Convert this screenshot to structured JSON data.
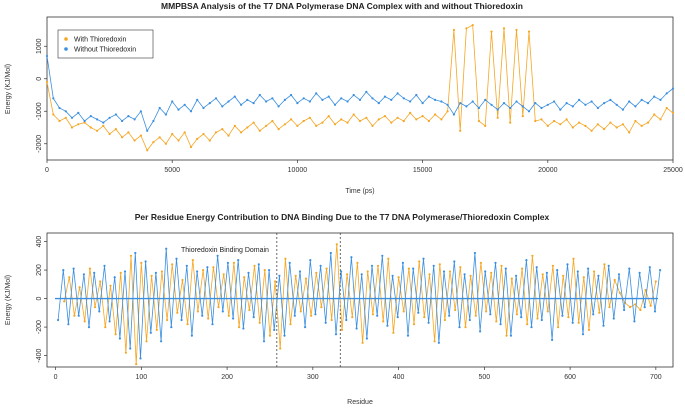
{
  "colors": {
    "with": "#F5A623",
    "without": "#3A8FE0",
    "axis": "#333333",
    "vline": "#444444"
  },
  "chart_data": [
    {
      "type": "line",
      "title": "MMPBSA Analysis of the T7 DNA Polymerase DNA Complex with and without Thioredoxin",
      "xlabel": "Time (ps)",
      "ylabel": "Energy (KJ/Mol)",
      "xlim": [
        0,
        25000
      ],
      "ylim": [
        -2500,
        1900
      ],
      "xticks": [
        0,
        5000,
        10000,
        15000,
        20000,
        25000
      ],
      "yticks": [
        -2000,
        -1000,
        0,
        1000
      ],
      "legend": {
        "position": "top-left",
        "entries": [
          "With Thioredoxin",
          "Without Thioredoxin"
        ]
      },
      "series": [
        {
          "name": "With Thioredoxin",
          "color_key": "with",
          "x": [
            0,
            250,
            500,
            750,
            1000,
            1250,
            1500,
            1750,
            2000,
            2250,
            2500,
            2750,
            3000,
            3250,
            3500,
            3750,
            4000,
            4250,
            4500,
            4750,
            5000,
            5250,
            5500,
            5750,
            6000,
            6250,
            6500,
            6750,
            7000,
            7250,
            7500,
            7750,
            8000,
            8250,
            8500,
            8750,
            9000,
            9250,
            9500,
            9750,
            10000,
            10250,
            10500,
            10750,
            11000,
            11250,
            11500,
            11750,
            12000,
            12250,
            12500,
            12750,
            13000,
            13250,
            13500,
            13750,
            14000,
            14250,
            14500,
            14750,
            15000,
            15250,
            15500,
            15750,
            16000,
            16250,
            16500,
            16750,
            17000,
            17250,
            17500,
            17750,
            18000,
            18250,
            18500,
            18750,
            19000,
            19250,
            19500,
            19750,
            20000,
            20250,
            20500,
            20750,
            21000,
            21250,
            21500,
            21750,
            22000,
            22250,
            22500,
            22750,
            23000,
            23250,
            23500,
            23750,
            24000,
            24250,
            24500,
            24750,
            25000
          ],
          "y": [
            -100,
            -1100,
            -1300,
            -1200,
            -1500,
            -1400,
            -1350,
            -1500,
            -1600,
            -1450,
            -1700,
            -1550,
            -1800,
            -1650,
            -1900,
            -1750,
            -2200,
            -1950,
            -1800,
            -2000,
            -1700,
            -1900,
            -1650,
            -2100,
            -1850,
            -1700,
            -1900,
            -1650,
            -1550,
            -1750,
            -1450,
            -1650,
            -1500,
            -1350,
            -1600,
            -1450,
            -1300,
            -1550,
            -1400,
            -1250,
            -1450,
            -1300,
            -1200,
            -1450,
            -1350,
            -1150,
            -1400,
            -1250,
            -1350,
            -1100,
            -1300,
            -1200,
            -1450,
            -1250,
            -1150,
            -1350,
            -1200,
            -1300,
            -1050,
            -1250,
            -1150,
            -1300,
            -1100,
            -1250,
            -1000,
            1500,
            -1600,
            1550,
            1650,
            -1300,
            -1450,
            1450,
            -1200,
            1550,
            -1350,
            1500,
            -1150,
            1450,
            -1300,
            -1250,
            -1450,
            -1300,
            -1400,
            -1250,
            -1500,
            -1350,
            -1450,
            -1600,
            -1400,
            -1550,
            -1350,
            -1500,
            -1400,
            -1650,
            -1300,
            -1450,
            -1350,
            -1100,
            -1250,
            -900,
            -1050
          ]
        },
        {
          "name": "Without Thioredoxin",
          "color_key": "without",
          "x": [
            0,
            250,
            500,
            750,
            1000,
            1250,
            1500,
            1750,
            2000,
            2250,
            2500,
            2750,
            3000,
            3250,
            3500,
            3750,
            4000,
            4250,
            4500,
            4750,
            5000,
            5250,
            5500,
            5750,
            6000,
            6250,
            6500,
            6750,
            7000,
            7250,
            7500,
            7750,
            8000,
            8250,
            8500,
            8750,
            9000,
            9250,
            9500,
            9750,
            10000,
            10250,
            10500,
            10750,
            11000,
            11250,
            11500,
            11750,
            12000,
            12250,
            12500,
            12750,
            13000,
            13250,
            13500,
            13750,
            14000,
            14250,
            14500,
            14750,
            15000,
            15250,
            15500,
            15750,
            16000,
            16250,
            16500,
            16750,
            17000,
            17250,
            17500,
            17750,
            18000,
            18250,
            18500,
            18750,
            19000,
            19250,
            19500,
            19750,
            20000,
            20250,
            20500,
            20750,
            21000,
            21250,
            21500,
            21750,
            22000,
            22250,
            22500,
            22750,
            23000,
            23250,
            23500,
            23750,
            24000,
            24250,
            24500,
            24750,
            25000
          ],
          "y": [
            700,
            -600,
            -900,
            -1000,
            -1200,
            -1050,
            -1300,
            -1150,
            -1250,
            -1350,
            -1200,
            -1100,
            -1300,
            -1150,
            -1250,
            -1000,
            -1600,
            -1300,
            -900,
            -1100,
            -700,
            -950,
            -800,
            -1000,
            -650,
            -900,
            -750,
            -600,
            -850,
            -700,
            -550,
            -800,
            -650,
            -750,
            -500,
            -700,
            -600,
            -850,
            -650,
            -500,
            -750,
            -600,
            -700,
            -450,
            -650,
            -550,
            -800,
            -600,
            -700,
            -500,
            -650,
            -400,
            -600,
            -750,
            -550,
            -650,
            -450,
            -600,
            -700,
            -500,
            -750,
            -550,
            -650,
            -700,
            -800,
            -1100,
            -750,
            -850,
            -700,
            -900,
            -650,
            -800,
            -950,
            -750,
            -900,
            -700,
            -850,
            -1000,
            -750,
            -900,
            -800,
            -700,
            -950,
            -750,
            -850,
            -650,
            -800,
            -700,
            -900,
            -750,
            -650,
            -800,
            -950,
            -700,
            -850,
            -650,
            -750,
            -550,
            -650,
            -450,
            -300
          ]
        }
      ]
    },
    {
      "type": "line",
      "title": "Per Residue Energy Contribution to DNA Binding Due to the T7 DNA Polymerase/Thioredoxin Complex",
      "xlabel": "Residue",
      "ylabel": "Energy (KJ/Mol)",
      "xlim": [
        -10,
        720
      ],
      "ylim": [
        -480,
        460
      ],
      "xticks": [
        0,
        100,
        200,
        300,
        400,
        500,
        600,
        700
      ],
      "yticks": [
        -400,
        -200,
        0,
        200,
        400
      ],
      "annotation": "Thioredoxin Binding Domain",
      "vlines": [
        258,
        332
      ],
      "series": [
        {
          "name": "With Thioredoxin",
          "color_key": "with",
          "x": [
            10,
            16,
            22,
            28,
            34,
            40,
            46,
            52,
            58,
            64,
            70,
            76,
            82,
            88,
            94,
            100,
            106,
            112,
            118,
            124,
            130,
            136,
            142,
            148,
            154,
            160,
            166,
            172,
            178,
            184,
            190,
            196,
            202,
            208,
            214,
            220,
            226,
            232,
            238,
            244,
            250,
            256,
            262,
            268,
            274,
            280,
            286,
            292,
            298,
            304,
            310,
            316,
            322,
            328,
            334,
            340,
            346,
            352,
            358,
            364,
            370,
            376,
            382,
            388,
            394,
            400,
            406,
            412,
            418,
            424,
            430,
            436,
            442,
            448,
            454,
            460,
            466,
            472,
            478,
            484,
            490,
            496,
            502,
            508,
            514,
            520,
            526,
            532,
            538,
            544,
            550,
            556,
            562,
            568,
            574,
            580,
            586,
            592,
            598,
            604,
            610,
            616,
            622,
            628,
            634,
            640,
            646,
            652,
            658,
            664,
            670,
            676,
            682,
            688,
            694,
            700
          ],
          "y": [
            -20,
            150,
            -120,
            80,
            -160,
            210,
            -60,
            120,
            -200,
            90,
            -250,
            180,
            -380,
            300,
            -460,
            250,
            -300,
            160,
            -220,
            190,
            -150,
            240,
            -100,
            130,
            -180,
            270,
            -90,
            200,
            -140,
            220,
            -60,
            170,
            -120,
            250,
            -200,
            150,
            -80,
            230,
            -170,
            200,
            -260,
            120,
            -350,
            280,
            -180,
            160,
            -90,
            140,
            -120,
            180,
            -60,
            210,
            -150,
            380,
            -220,
            170,
            -130,
            250,
            -310,
            190,
            -110,
            230,
            -160,
            280,
            -240,
            150,
            -90,
            210,
            -180,
            260,
            -130,
            170,
            -300,
            240,
            -150,
            190,
            -80,
            220,
            -200,
            160,
            -120,
            250,
            -90,
            180,
            -160,
            230,
            -260,
            140,
            -110,
            210,
            -180,
            300,
            -140,
            170,
            -90,
            230,
            -200,
            160,
            -130,
            280,
            -170,
            150,
            -220,
            190,
            -100,
            240,
            -60,
            130,
            40,
            -30,
            -60,
            -40,
            -80,
            60,
            -50,
            120
          ]
        },
        {
          "name": "Without Thioredoxin",
          "color_key": "without",
          "x": [
            3,
            9,
            15,
            21,
            27,
            33,
            39,
            45,
            51,
            57,
            63,
            69,
            75,
            81,
            87,
            93,
            99,
            105,
            111,
            117,
            123,
            129,
            135,
            141,
            147,
            153,
            159,
            165,
            171,
            177,
            183,
            189,
            195,
            201,
            207,
            213,
            219,
            225,
            231,
            237,
            243,
            249,
            255,
            261,
            267,
            273,
            279,
            285,
            291,
            297,
            303,
            309,
            315,
            321,
            327,
            333,
            339,
            345,
            351,
            357,
            363,
            369,
            375,
            381,
            387,
            393,
            399,
            405,
            411,
            417,
            423,
            429,
            435,
            441,
            447,
            453,
            459,
            465,
            471,
            477,
            483,
            489,
            495,
            501,
            507,
            513,
            519,
            525,
            531,
            537,
            543,
            549,
            555,
            561,
            567,
            573,
            579,
            585,
            591,
            597,
            603,
            609,
            615,
            621,
            627,
            633,
            639,
            645,
            651,
            657,
            663,
            669,
            675,
            681,
            687,
            693,
            699,
            705
          ],
          "y": [
            -150,
            200,
            -180,
            210,
            -120,
            170,
            -200,
            180,
            -90,
            230,
            -160,
            150,
            -280,
            190,
            -350,
            320,
            -420,
            260,
            -240,
            180,
            -300,
            350,
            -200,
            280,
            -150,
            230,
            -260,
            190,
            -120,
            220,
            -180,
            300,
            -90,
            250,
            -140,
            270,
            -210,
            180,
            -130,
            240,
            -300,
            200,
            -220,
            160,
            -260,
            250,
            -120,
            190,
            -200,
            270,
            -110,
            230,
            -170,
            320,
            -250,
            190,
            -150,
            290,
            -210,
            170,
            -280,
            230,
            -120,
            300,
            -190,
            160,
            -130,
            250,
            -260,
            210,
            -100,
            280,
            -170,
            230,
            -310,
            190,
            -120,
            260,
            -200,
            170,
            -150,
            320,
            -230,
            190,
            -110,
            250,
            -180,
            210,
            -260,
            160,
            -130,
            270,
            -200,
            220,
            -150,
            180,
            -290,
            200,
            -120,
            240,
            -170,
            190,
            -250,
            210,
            -110,
            160,
            -190,
            230,
            -140,
            170,
            -80,
            210,
            -160,
            180,
            -60,
            220,
            -90,
            200
          ]
        }
      ]
    }
  ]
}
